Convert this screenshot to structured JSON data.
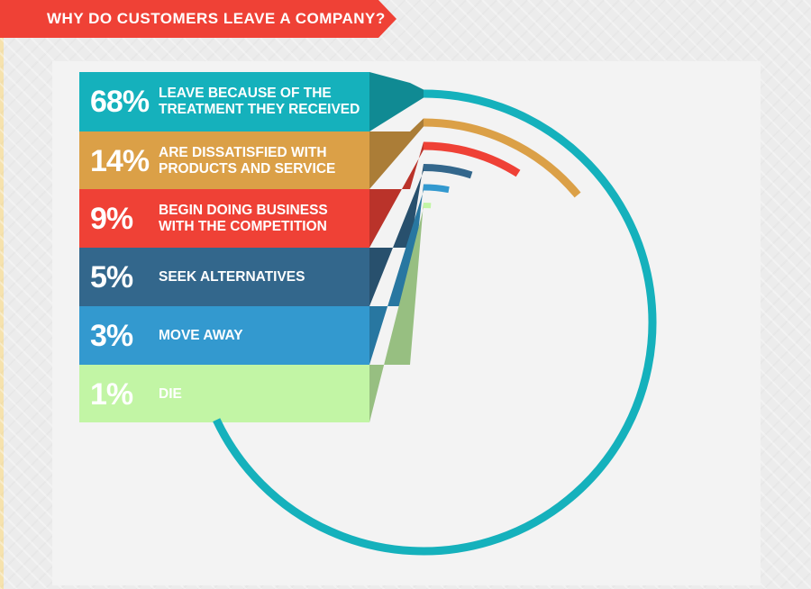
{
  "header": {
    "title": "WHY DO CUSTOMERS LEAVE A COMPANY?",
    "banner_color": "#ef4136"
  },
  "chart_data": {
    "type": "pie",
    "title": "WHY DO CUSTOMERS LEAVE A COMPANY?",
    "series": [
      {
        "percent_label": "68%",
        "value": 68,
        "label": "LEAVE BECAUSE OF THE\nTREATMENT THEY RECEIVED",
        "color": "#15b1bc"
      },
      {
        "percent_label": "14%",
        "value": 14,
        "label": "ARE DISSATISFIED WITH\nPRODUCTS AND SERVICE",
        "color": "#dba047"
      },
      {
        "percent_label": "9%",
        "value": 9,
        "label": "BEGIN DOING BUSINESS\nWITH THE COMPETITION",
        "color": "#ef4136"
      },
      {
        "percent_label": "5%",
        "value": 5,
        "label": "SEEK ALTERNATIVES",
        "color": "#33678c"
      },
      {
        "percent_label": "3%",
        "value": 3,
        "label": "MOVE AWAY",
        "color": "#3399cf"
      },
      {
        "percent_label": "1%",
        "value": 1,
        "label": "DIE",
        "color": "#c2f5a5"
      }
    ]
  }
}
